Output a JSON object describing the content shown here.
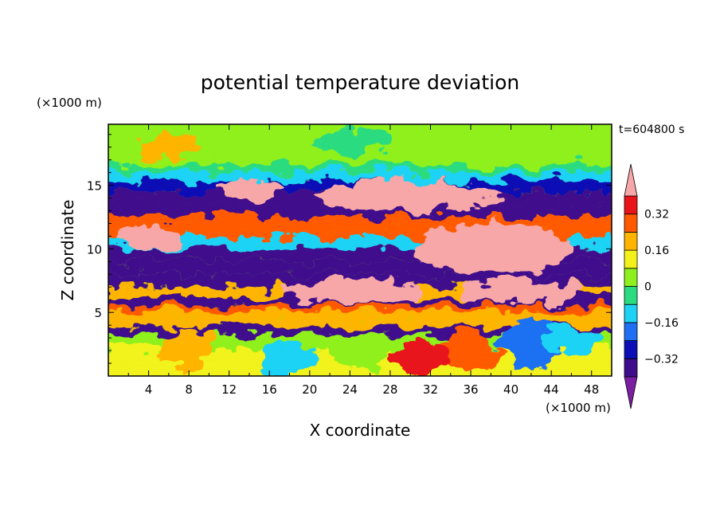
{
  "chart_data": {
    "type": "heatmap",
    "title": "potential temperature deviation",
    "time_label": "t=604800 s",
    "xlabel": "X coordinate",
    "ylabel": "Z coordinate",
    "x_unit": "(×1000 m)",
    "y_unit": "(×1000 m)",
    "xlim": [
      0,
      50
    ],
    "ylim": [
      0,
      19.8
    ],
    "x_ticks": [
      {
        "v": 4,
        "label": "4"
      },
      {
        "v": 8,
        "label": "8"
      },
      {
        "v": 12,
        "label": "12"
      },
      {
        "v": 16,
        "label": "16"
      },
      {
        "v": 20,
        "label": "20"
      },
      {
        "v": 24,
        "label": "24"
      },
      {
        "v": 28,
        "label": "28"
      },
      {
        "v": 32,
        "label": "32"
      },
      {
        "v": 36,
        "label": "36"
      },
      {
        "v": 40,
        "label": "40"
      },
      {
        "v": 44,
        "label": "44"
      },
      {
        "v": 48,
        "label": "48"
      }
    ],
    "y_ticks": [
      {
        "v": 5,
        "label": "5"
      },
      {
        "v": 10,
        "label": "10"
      },
      {
        "v": 15,
        "label": "15"
      }
    ],
    "levels": [
      -0.4,
      -0.32,
      -0.24,
      -0.16,
      -0.08,
      0,
      0.08,
      0.16,
      0.24,
      0.32,
      0.4
    ],
    "colorbar_labels": [
      {
        "v": 0.32,
        "label": "0.32"
      },
      {
        "v": 0.16,
        "label": "0.16"
      },
      {
        "v": 0,
        "label": "0"
      },
      {
        "v": -0.16,
        "label": "−0.16"
      },
      {
        "v": -0.32,
        "label": "−0.32"
      }
    ],
    "colors": [
      "#7a1fa2",
      "#3f0c8c",
      "#0b0fb5",
      "#1f6ff2",
      "#1fd2f5",
      "#2bdb80",
      "#8ff01f",
      "#f2f21a",
      "#ffb400",
      "#ff5a00",
      "#e8141a",
      "#f7a7a7"
    ],
    "bands": [
      {
        "z": 19.5,
        "v": 0.05
      },
      {
        "z": 18.5,
        "v": 0.06
      },
      {
        "z": 17.8,
        "v": 0.0
      },
      {
        "z": 17.0,
        "v": 0.02
      },
      {
        "z": 16.3,
        "v": -0.05
      },
      {
        "z": 15.8,
        "v": -0.15
      },
      {
        "z": 15.0,
        "v": -0.3
      },
      {
        "z": 14.0,
        "v": -0.34
      },
      {
        "z": 13.0,
        "v": -0.38
      },
      {
        "z": 12.0,
        "v": 0.24
      },
      {
        "z": 11.3,
        "v": 0.3
      },
      {
        "z": 10.5,
        "v": -0.1
      },
      {
        "z": 9.6,
        "v": -0.36
      },
      {
        "z": 8.6,
        "v": -0.33
      },
      {
        "z": 7.4,
        "v": -0.35
      },
      {
        "z": 6.6,
        "v": 0.22
      },
      {
        "z": 5.8,
        "v": -0.33
      },
      {
        "z": 5.3,
        "v": 0.28
      },
      {
        "z": 4.8,
        "v": 0.2
      },
      {
        "z": 4.2,
        "v": 0.22
      },
      {
        "z": 3.6,
        "v": -0.36
      },
      {
        "z": 2.8,
        "v": 0.05
      },
      {
        "z": 1.5,
        "v": 0.08
      },
      {
        "z": 0.5,
        "v": 0.1
      }
    ],
    "features": [
      {
        "x": 30,
        "z": 14.2,
        "rx": 9,
        "rz": 1.3,
        "v": 0.45
      },
      {
        "x": 38,
        "z": 10.0,
        "rx": 8,
        "rz": 2.0,
        "v": 0.45
      },
      {
        "x": 24,
        "z": 6.6,
        "rx": 7,
        "rz": 0.9,
        "v": 0.45
      },
      {
        "x": 41,
        "z": 6.6,
        "rx": 6,
        "rz": 0.9,
        "v": 0.45
      },
      {
        "x": 4,
        "z": 11.0,
        "rx": 3,
        "rz": 0.9,
        "v": 0.45
      },
      {
        "x": 14,
        "z": 14.8,
        "rx": 3,
        "rz": 0.8,
        "v": 0.45
      },
      {
        "x": 36,
        "z": 2.0,
        "rx": 3,
        "rz": 1.6,
        "v": 0.3
      },
      {
        "x": 31,
        "z": 1.4,
        "rx": 3,
        "rz": 1.2,
        "v": 0.32
      },
      {
        "x": 42,
        "z": 2.5,
        "rx": 3,
        "rz": 2.0,
        "v": -0.24
      },
      {
        "x": 46,
        "z": 2.8,
        "rx": 3,
        "rz": 1.0,
        "v": -0.1
      },
      {
        "x": 8,
        "z": 2.2,
        "rx": 2.5,
        "rz": 1.5,
        "v": 0.18
      },
      {
        "x": 18,
        "z": 1.5,
        "rx": 3,
        "rz": 1.2,
        "v": -0.16
      },
      {
        "x": 25,
        "z": 2.0,
        "rx": 3,
        "rz": 1.3,
        "v": 0.02
      },
      {
        "x": 24,
        "z": 18.5,
        "rx": 4,
        "rz": 1.0,
        "v": -0.08
      },
      {
        "x": 6,
        "z": 18.0,
        "rx": 3,
        "rz": 1.0,
        "v": 0.16
      }
    ]
  }
}
